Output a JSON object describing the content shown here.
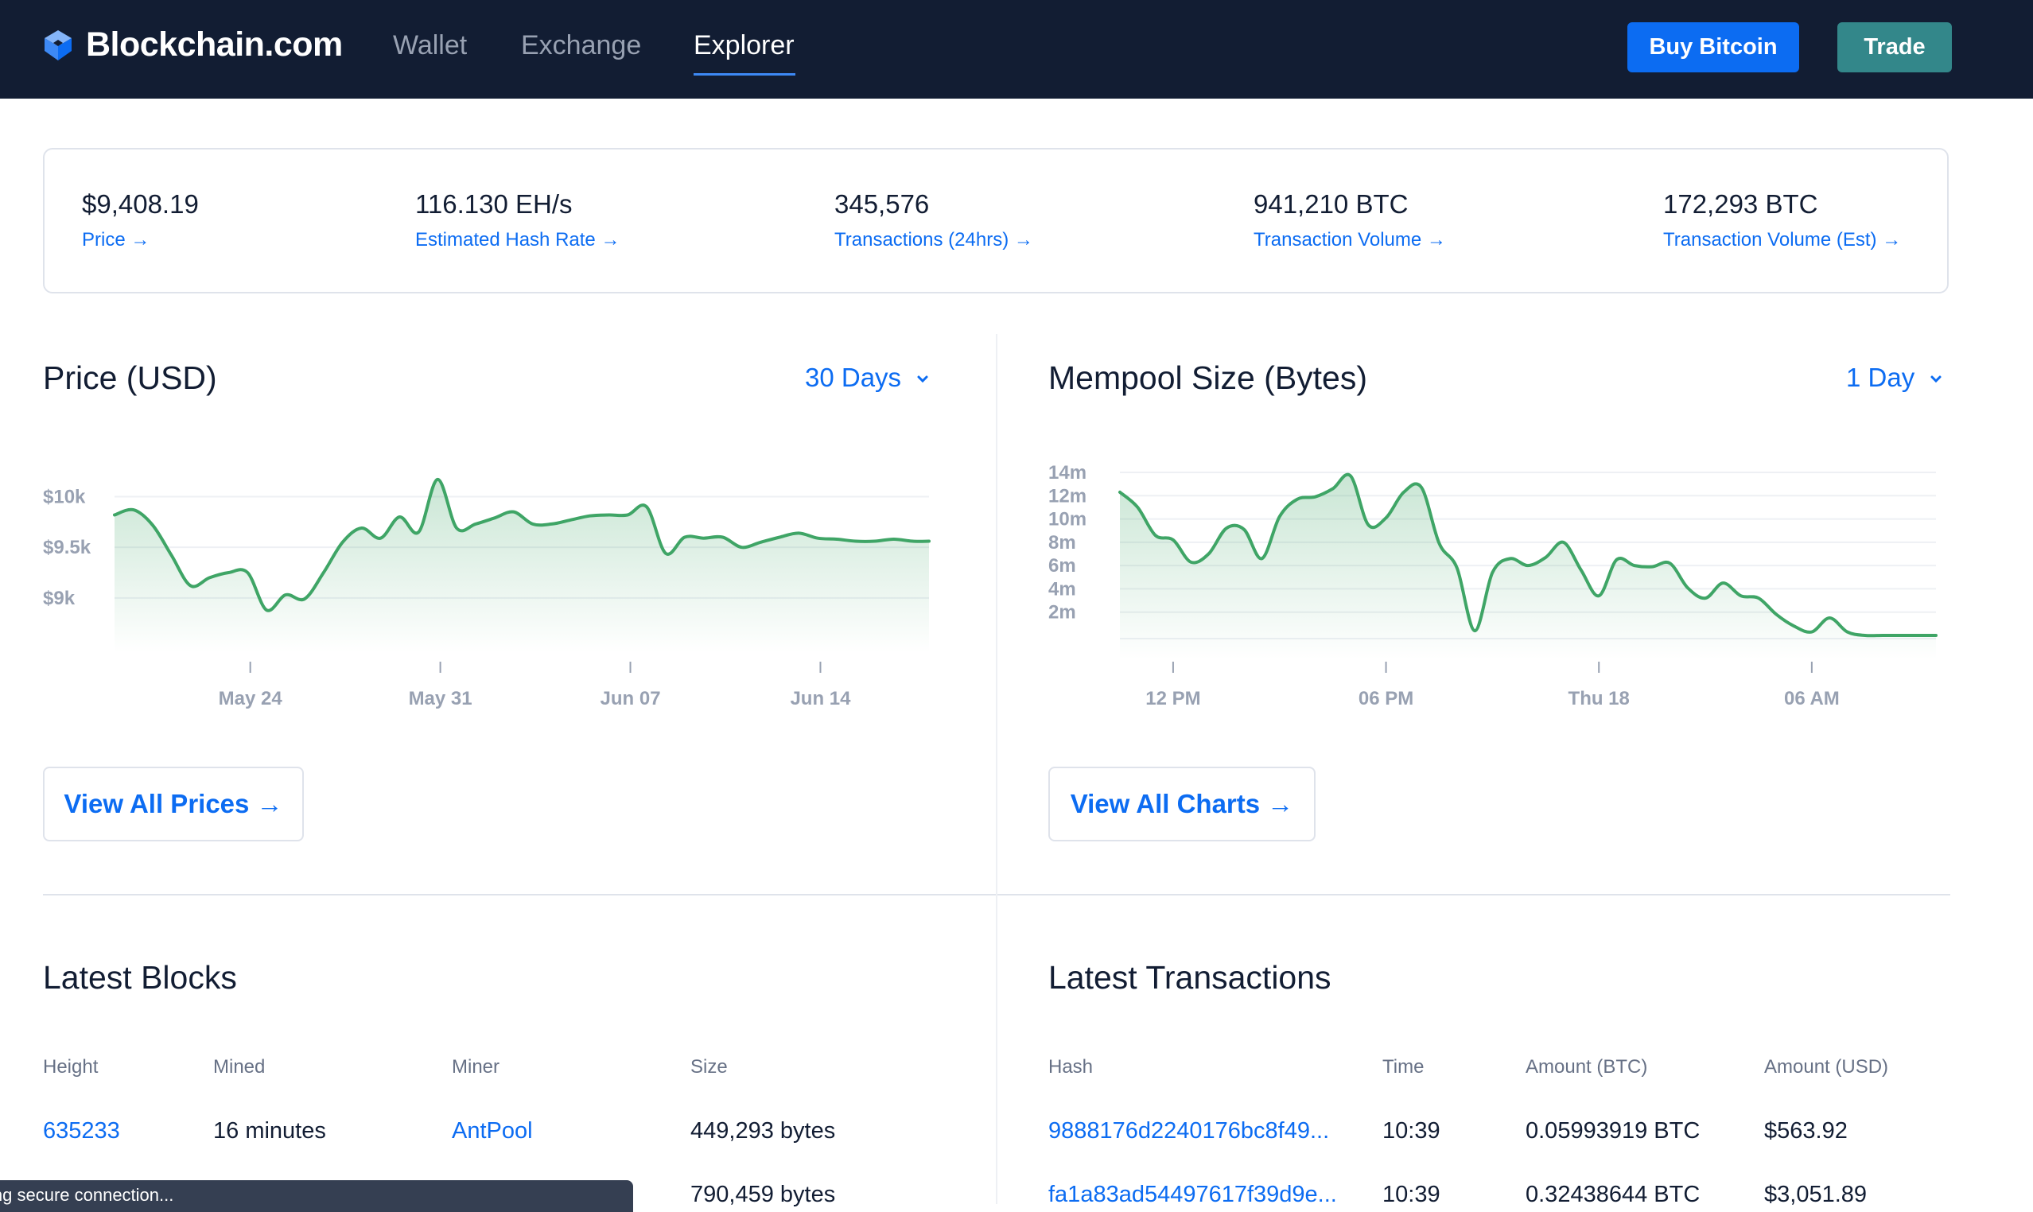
{
  "header": {
    "brand": "Blockchain.com",
    "nav": [
      "Wallet",
      "Exchange",
      "Explorer"
    ],
    "active_nav": "Explorer",
    "buy_label": "Buy Bitcoin",
    "trade_label": "Trade"
  },
  "stats": [
    {
      "value": "$9,408.19",
      "label": "Price"
    },
    {
      "value": "116.130 EH/s",
      "label": "Estimated Hash Rate"
    },
    {
      "value": "345,576",
      "label": "Transactions (24hrs)"
    },
    {
      "value": "941,210 BTC",
      "label": "Transaction Volume"
    },
    {
      "value": "172,293 BTC",
      "label": "Transaction Volume (Est)"
    }
  ],
  "price_panel": {
    "title": "Price (USD)",
    "range": "30 Days",
    "view_all": "View All Prices"
  },
  "mempool_panel": {
    "title": "Mempool Size (Bytes)",
    "range": "1 Day",
    "view_all": "View All Charts"
  },
  "chart_data": [
    {
      "type": "area",
      "title": "Price (USD)",
      "y_tick_labels": [
        "$10k",
        "$9.5k",
        "$9k"
      ],
      "y_ticks": [
        10000,
        9500,
        9000
      ],
      "ylim": [
        8700,
        10350
      ],
      "x_tick_labels": [
        "May 24",
        "May 31",
        "Jun 07",
        "Jun 14"
      ],
      "x_ticks": [
        5.0,
        12.0,
        19.0,
        26.0
      ],
      "xlim": [
        0,
        30
      ],
      "grid": true,
      "color": "#3fa566",
      "x": [
        0.0,
        0.7,
        1.4,
        2.1,
        2.8,
        3.5,
        4.2,
        4.9,
        5.6,
        6.3,
        7.0,
        7.7,
        8.4,
        9.1,
        9.8,
        10.5,
        11.2,
        11.9,
        12.6,
        13.3,
        14.0,
        14.7,
        15.4,
        16.1,
        16.8,
        17.5,
        18.2,
        18.9,
        19.6,
        20.3,
        21.0,
        21.7,
        22.4,
        23.1,
        23.8,
        24.5,
        25.2,
        25.9,
        26.6,
        27.3,
        28.0,
        28.7,
        29.4,
        30.0
      ],
      "y": [
        9820,
        9870,
        9720,
        9420,
        9120,
        9200,
        9250,
        9250,
        8880,
        9030,
        8990,
        9250,
        9550,
        9690,
        9590,
        9800,
        9650,
        10170,
        9690,
        9730,
        9790,
        9850,
        9730,
        9730,
        9770,
        9810,
        9820,
        9820,
        9900,
        9440,
        9600,
        9590,
        9600,
        9500,
        9550,
        9600,
        9640,
        9590,
        9580,
        9560,
        9560,
        9580,
        9560,
        9560
      ]
    },
    {
      "type": "area",
      "title": "Mempool Size (Bytes)",
      "y_tick_labels": [
        "14m",
        "12m",
        "10m",
        "8m",
        "6m",
        "4m",
        "2m"
      ],
      "y_ticks": [
        14,
        12,
        10,
        8,
        6,
        4,
        2
      ],
      "ylim": [
        0,
        14
      ],
      "x_tick_labels": [
        "12 PM",
        "06 PM",
        "Thu 18",
        "06 AM"
      ],
      "x_ticks": [
        1.5,
        7.5,
        13.5,
        19.5
      ],
      "xlim": [
        0,
        23
      ],
      "grid": true,
      "color": "#3fa566",
      "x": [
        0,
        0.5,
        1,
        1.5,
        2,
        2.5,
        3,
        3.5,
        4,
        4.5,
        5,
        5.5,
        6,
        6.5,
        7,
        7.5,
        8,
        8.5,
        9,
        9.5,
        10,
        10.5,
        11,
        11.5,
        12,
        12.5,
        13,
        13.5,
        14,
        14.5,
        15,
        15.5,
        16,
        16.5,
        17,
        17.5,
        18,
        18.5,
        19,
        19.5,
        20,
        20.5,
        21,
        21.5,
        22,
        22.5,
        23
      ],
      "y": [
        12.3,
        11.0,
        8.6,
        8.2,
        6.3,
        7.0,
        9.2,
        9.1,
        6.6,
        10.2,
        11.7,
        11.9,
        12.6,
        13.7,
        9.5,
        10.1,
        12.3,
        12.7,
        7.9,
        5.8,
        0.4,
        5.4,
        6.6,
        6.0,
        6.7,
        8.0,
        5.6,
        3.4,
        6.5,
        6.0,
        5.9,
        6.2,
        4.1,
        3.2,
        4.5,
        3.4,
        3.2,
        1.8,
        0.8,
        0.3,
        1.5,
        0.3,
        0.0,
        0.0,
        0.0,
        0.0,
        0.0
      ]
    }
  ],
  "blocks": {
    "title": "Latest Blocks",
    "headers": [
      "Height",
      "Mined",
      "Miner",
      "Size"
    ],
    "rows": [
      [
        "635233",
        "16 minutes",
        "AntPool",
        "449,293 bytes"
      ],
      [
        "",
        "",
        "",
        "790,459 bytes"
      ]
    ]
  },
  "transactions": {
    "title": "Latest Transactions",
    "headers": [
      "Hash",
      "Time",
      "Amount (BTC)",
      "Amount (USD)"
    ],
    "rows": [
      [
        "9888176d2240176bc8f49...",
        "10:39",
        "0.05993919 BTC",
        "$563.92"
      ],
      [
        "fa1a83ad54497617f39d9e...",
        "10:39",
        "0.32438644 BTC",
        "$3,051.89"
      ]
    ]
  },
  "status_toast": "ing secure connection..."
}
